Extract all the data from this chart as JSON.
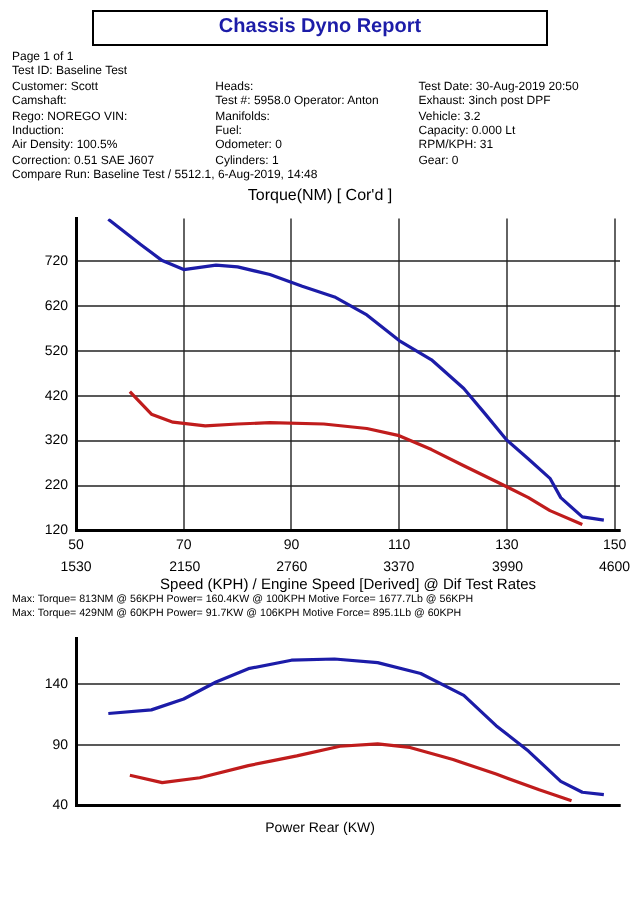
{
  "chart_data": [
    {
      "type": "line",
      "title": "Torque(NM)     [ Cor'd ]",
      "subtitle": "Chassis Dyno Report",
      "xlabel": "Speed (KPH) / Engine Speed [Derived] @ Dif Test Rates",
      "annotations": [
        "Page 1 of 1",
        "Test ID: Baseline Test",
        "Customer: Scott",
        "Heads:",
        "Test Date: 30-Aug-2019 20:50",
        "Camshaft:",
        "Test #: 5958.0  Operator: Anton",
        "Exhaust: 3inch post DPF",
        "Rego: NOREGO  VIN:",
        "Manifolds:",
        "Vehicle: 3.2",
        "Induction:",
        "Fuel:",
        "Capacity: 0.000 Lt",
        "Air Density: 100.5%",
        "Odometer: 0",
        "RPM/KPH: 31",
        "Correction: 0.51 SAE J607",
        "Cylinders: 1",
        "Gear: 0",
        "Compare Run: Baseline Test / 5512.1, 6-Aug-2019, 14:48",
        "Max: Torque= 813NM @ 56KPH   Power= 160.4KW @ 100KPH   Motive Force= 1677.7Lb @ 56KPH",
        "Max: Torque= 429NM @ 60KPH   Power= 91.7KW @ 106KPH   Motive Force= 895.1Lb @ 60KPH"
      ],
      "xlim": [
        50,
        151
      ],
      "xticks": [
        50,
        70,
        90,
        110,
        130,
        150
      ],
      "x2lim": [
        1530,
        4631
      ],
      "x2ticks": [
        1530,
        2150,
        2760,
        3370,
        3990,
        4600
      ],
      "ylim": [
        120,
        815
      ],
      "yticks": [
        120,
        220,
        320,
        420,
        520,
        620,
        720
      ],
      "grid": true,
      "legend": false,
      "marker": "none",
      "series": [
        {
          "color": "#1c1ca8",
          "x": [
            56,
            62,
            66,
            70,
            76,
            80,
            86,
            92,
            98,
            104,
            110,
            116,
            122,
            126,
            130,
            134,
            138,
            140,
            144,
            148
          ],
          "values": [
            813,
            757,
            721,
            701,
            711,
            707,
            690,
            664,
            640,
            600,
            543,
            500,
            436,
            379,
            321,
            279,
            236,
            193,
            150,
            143
          ]
        },
        {
          "color": "#c01c1c",
          "x": [
            60,
            64,
            68,
            74,
            80,
            86,
            96,
            104,
            110,
            116,
            122,
            128,
            134,
            138,
            144
          ],
          "values": [
            429,
            379,
            361,
            353,
            357,
            360,
            357,
            347,
            331,
            300,
            264,
            229,
            193,
            164,
            133
          ]
        }
      ]
    },
    {
      "type": "line",
      "xlabel": "Power Rear (KW)",
      "xlim": [
        50,
        151
      ],
      "ylim": [
        40,
        178
      ],
      "yticks": [
        40,
        90,
        140
      ],
      "tick_labels": "y",
      "grid": true,
      "legend": false,
      "marker": "none",
      "series": [
        {
          "color": "#1c1ca8",
          "x": [
            56,
            64,
            70,
            76,
            82,
            90,
            98,
            106,
            114,
            122,
            128,
            134,
            140,
            144,
            148
          ],
          "values": [
            116,
            119,
            128,
            142,
            153,
            160,
            161,
            158,
            149,
            131,
            106,
            85,
            60,
            51,
            49
          ]
        },
        {
          "color": "#c01c1c",
          "x": [
            60,
            66,
            73,
            82,
            91,
            99,
            106,
            112,
            120,
            128,
            136,
            142
          ],
          "values": [
            65,
            59,
            63,
            73,
            81,
            89,
            91,
            88,
            78,
            66,
            53,
            44
          ]
        }
      ]
    }
  ]
}
